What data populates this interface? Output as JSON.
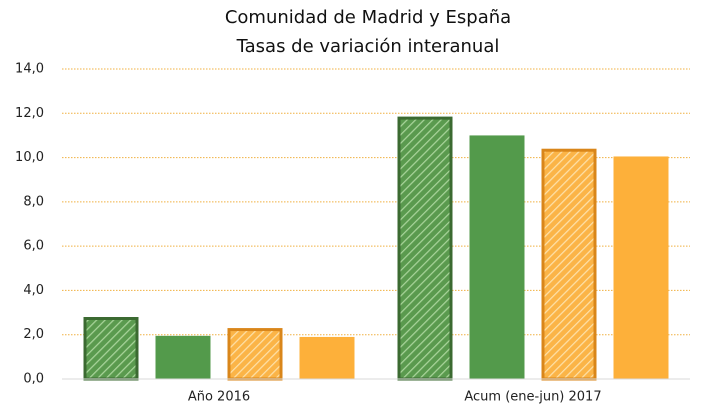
{
  "chart_data": {
    "type": "bar",
    "subtitle": [
      "Comunidad de Madrid y España",
      "Tasas de variación interanual"
    ],
    "categories": [
      "Año 2016",
      "Acum (ene-jun) 2017"
    ],
    "series": [
      {
        "color": "#5a9a4e",
        "edge": "#3b6a31",
        "hatch": true,
        "values": [
          2.8,
          11.85
        ]
      },
      {
        "color": "#539a4b",
        "hatch": false,
        "values": [
          1.95,
          11.0
        ]
      },
      {
        "color": "#fbb447",
        "edge": "#d9861a",
        "hatch": true,
        "values": [
          2.3,
          10.4
        ]
      },
      {
        "color": "#fdb03a",
        "hatch": false,
        "values": [
          1.9,
          10.05
        ]
      }
    ],
    "ylim": [
      0,
      14
    ],
    "yticks": [
      {
        "value": 0,
        "label": "0,0"
      },
      {
        "value": 2,
        "label": "2,0"
      },
      {
        "value": 4,
        "label": "4,0"
      },
      {
        "value": 6,
        "label": "6,0"
      },
      {
        "value": 8,
        "label": "8,0"
      },
      {
        "value": 10,
        "label": "10,0"
      },
      {
        "value": 12,
        "label": "12,0"
      },
      {
        "value": 14,
        "label": "14,0"
      }
    ],
    "grid": true
  }
}
